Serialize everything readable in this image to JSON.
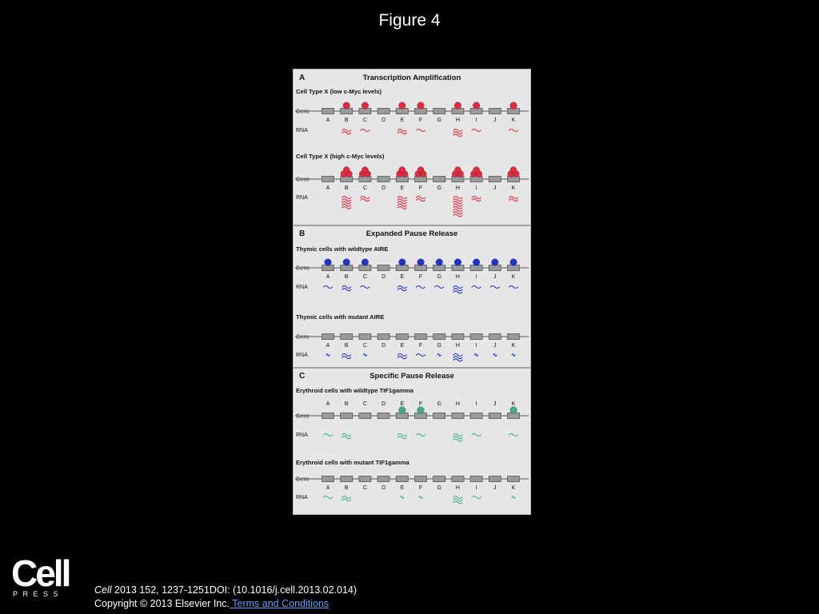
{
  "figure_title": "Figure 4",
  "gene_letters": [
    "A",
    "B",
    "C",
    "D",
    "E",
    "F",
    "G",
    "H",
    "I",
    "J",
    "K"
  ],
  "row_labels": {
    "gene": "Gene",
    "rna": "RNA"
  },
  "colors": {
    "red": "#e8283c",
    "blue": "#2233cc",
    "green": "#3fae8a",
    "gray": "#9a9a9a"
  },
  "panels": [
    {
      "letter": "A",
      "title": "Transcription Amplification",
      "cases": [
        {
          "label": "Cell Type X (low c-Myc levels)",
          "color": "red",
          "factor": [
            0,
            1,
            1,
            0,
            1,
            1,
            0,
            1,
            1,
            0,
            1
          ],
          "factor_stack": 1,
          "rna": [
            0,
            2,
            1,
            0,
            2,
            1,
            0,
            3,
            1,
            0,
            1
          ]
        },
        {
          "label": "Cell Type X (high c-Myc levels)",
          "color": "red",
          "factor": [
            0,
            1,
            1,
            0,
            1,
            1,
            0,
            1,
            1,
            0,
            1
          ],
          "factor_stack": 3,
          "rna": [
            0,
            5,
            2,
            0,
            5,
            2,
            0,
            8,
            2,
            0,
            2
          ]
        }
      ]
    },
    {
      "letter": "B",
      "title": "Expanded Pause Release",
      "cases": [
        {
          "label": "Thymic cells with wildtype AIRE",
          "color": "blue",
          "factor": [
            1,
            1,
            1,
            0,
            1,
            1,
            1,
            1,
            1,
            1,
            1
          ],
          "factor_stack": 1,
          "rna": [
            1,
            2,
            1,
            0,
            2,
            1,
            1,
            3,
            1,
            1,
            1
          ]
        },
        {
          "label": "Thymic cells with mutant AIRE",
          "color": "blue",
          "factor": [
            0,
            0,
            0,
            0,
            0,
            0,
            0,
            0,
            0,
            0,
            0
          ],
          "factor_stack": 1,
          "rna": [
            0.5,
            2,
            0.5,
            0,
            2,
            1,
            0.5,
            3,
            0.5,
            0.5,
            0.5
          ]
        }
      ]
    },
    {
      "letter": "C",
      "title": "Specific Pause Release",
      "cases": [
        {
          "label": "Erythroid cells with wildtype TIF1gamma",
          "color": "green",
          "factor": [
            0,
            0,
            0,
            0,
            1,
            1,
            0,
            0,
            0,
            0,
            1
          ],
          "factor_stack": 1,
          "rna": [
            1,
            2,
            0,
            0,
            2,
            1,
            0,
            3,
            1,
            0,
            1
          ]
        },
        {
          "label": "Erythroid cells with mutant TIF1gamma",
          "color": "green",
          "factor": [
            0,
            0,
            0,
            0,
            0,
            0,
            0,
            0,
            0,
            0,
            0
          ],
          "factor_stack": 1,
          "rna": [
            1,
            2,
            0,
            0,
            0.5,
            0.5,
            0,
            3,
            1,
            0,
            0.5
          ]
        }
      ]
    }
  ],
  "footer": {
    "logo_word": "Cell",
    "logo_press": "PRESS",
    "journal": "Cell",
    "citation": " 2013 152, 1237-1251DOI: (10.1016/j.cell.2013.02.014)",
    "copyright": "Copyright © 2013 Elsevier Inc.",
    "terms_link": " Terms and Conditions"
  }
}
